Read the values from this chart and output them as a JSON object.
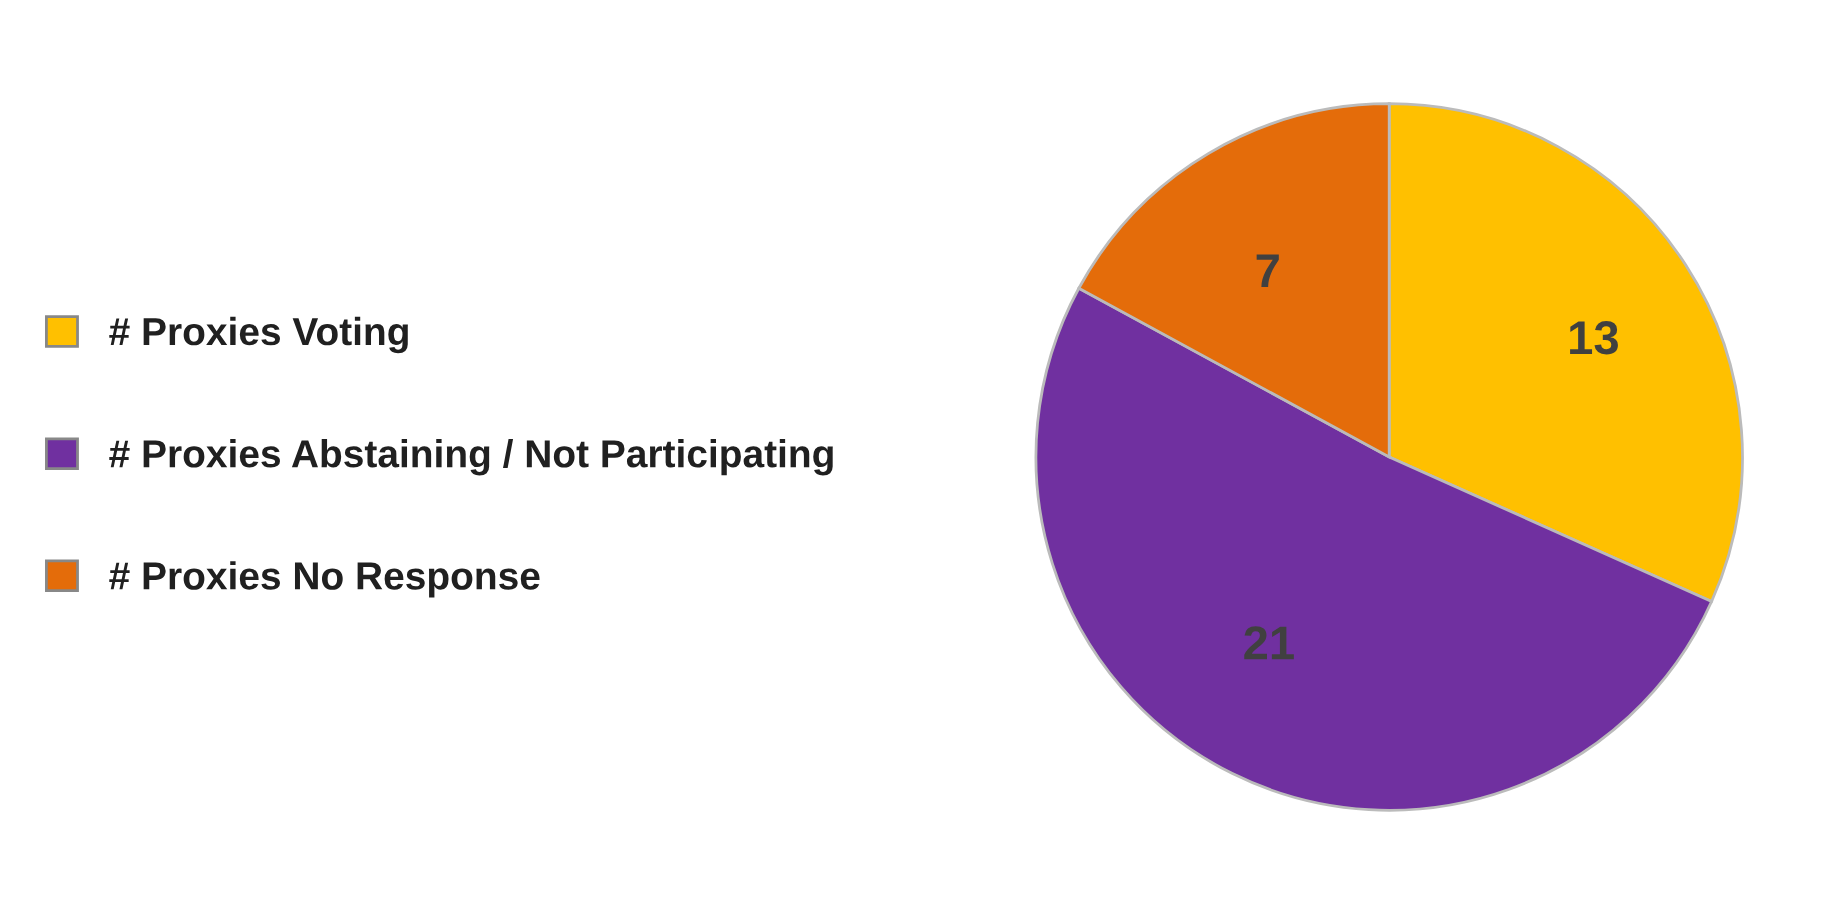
{
  "chart_data": {
    "type": "pie",
    "categories": [
      "# Proxies Voting",
      "# Proxies Abstaining / Not Participating",
      "# Proxies No Response"
    ],
    "values": [
      13,
      21,
      7
    ],
    "colors": [
      "#ffc000",
      "#7030a0",
      "#e46c0a"
    ],
    "data_labels": true,
    "legend": "left"
  }
}
